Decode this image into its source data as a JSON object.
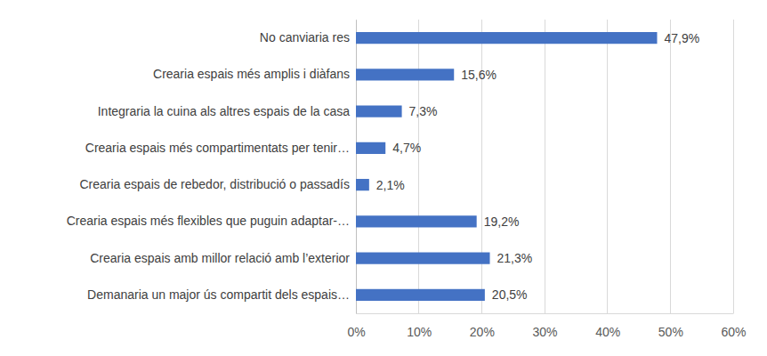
{
  "chart_data": {
    "type": "bar",
    "orientation": "horizontal",
    "categories": [
      "No canviaria res",
      "Crearia espais més amplis i diàfans",
      "Integraria la cuina als altres espais de la casa",
      "Crearia espais més compartimentats per tenir…",
      "Crearia espais de rebedor, distribució o passadís",
      "Crearia espais més flexibles que puguin adaptar-…",
      "Crearia espais amb millor relació amb l’exterior",
      "Demanaria un major ús compartit dels espais…"
    ],
    "values": [
      47.9,
      15.6,
      7.3,
      4.7,
      2.1,
      19.2,
      21.3,
      20.5
    ],
    "value_labels": [
      "47,9%",
      "15,6%",
      "7,3%",
      "4,7%",
      "2,1%",
      "19,2%",
      "21,3%",
      "20,5%"
    ],
    "color": "#4472c4",
    "xlim": [
      0,
      60
    ],
    "xticks": [
      {
        "value": 0,
        "label": "0%"
      },
      {
        "value": 10,
        "label": "10%"
      },
      {
        "value": 20,
        "label": "20%"
      },
      {
        "value": 30,
        "label": "30%"
      },
      {
        "value": 40,
        "label": "40%"
      },
      {
        "value": 50,
        "label": "50%"
      },
      {
        "value": 60,
        "label": "60%"
      }
    ],
    "grid": true,
    "data_labels": true
  }
}
